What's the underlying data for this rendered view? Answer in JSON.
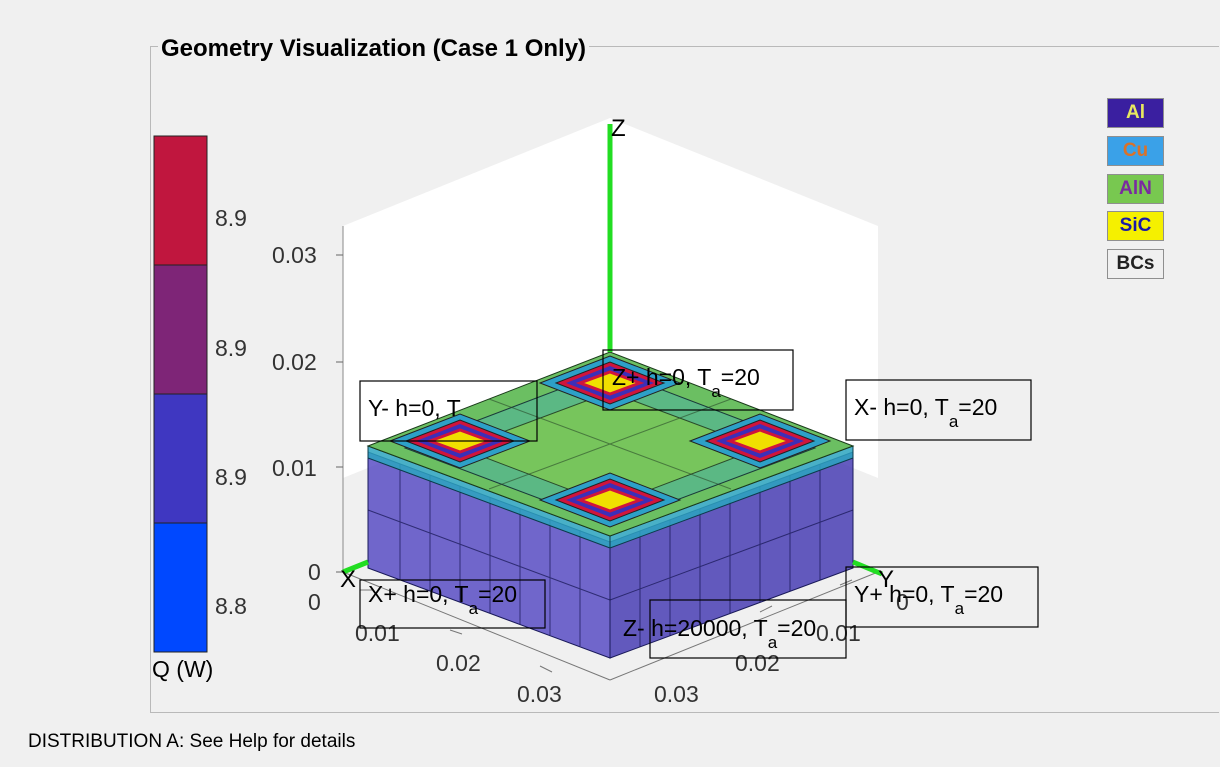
{
  "panel": {
    "title": "Geometry Visualization (Case 1 Only)"
  },
  "footer": {
    "text": "DISTRIBUTION A: See Help for details"
  },
  "legend": [
    {
      "label": "Al",
      "bg": "#3a1fa0",
      "fg": "#e8e860"
    },
    {
      "label": "Cu",
      "bg": "#3aa1e8",
      "fg": "#d9722a"
    },
    {
      "label": "AlN",
      "bg": "#78c850",
      "fg": "#7a2aa0"
    },
    {
      "label": "SiC",
      "bg": "#f5f000",
      "fg": "#1a1aa8"
    },
    {
      "label": "BCs",
      "bg": "#f0f0f0",
      "fg": "#222222"
    }
  ],
  "colorbar": {
    "label": "Q (W)",
    "ticks": [
      "8.9",
      "8.9",
      "8.9",
      "8.8"
    ],
    "colors": [
      "#c0163e",
      "#7e2577",
      "#3f37c1",
      "#0048ff"
    ]
  },
  "axes": {
    "z_label": "Z",
    "x_label": "X",
    "y_label": "Y",
    "z_ticks": [
      "0.03",
      "0.02",
      "0.01",
      "0"
    ],
    "x_ticks": [
      "0",
      "0.01",
      "0.02",
      "0.03"
    ],
    "y_ticks": [
      "0",
      "0.01",
      "0.02",
      "0.03"
    ]
  },
  "bc_labels": {
    "z_plus": "Z+ h=0, T",
    "x_minus": "X- h=0, T",
    "y_minus": "Y- h=0, T",
    "x_plus": "X+ h=0, T",
    "y_plus": "Y+ h=0, T",
    "z_minus": "Z- h=20000, T",
    "sub": "a",
    "value": "=20"
  }
}
